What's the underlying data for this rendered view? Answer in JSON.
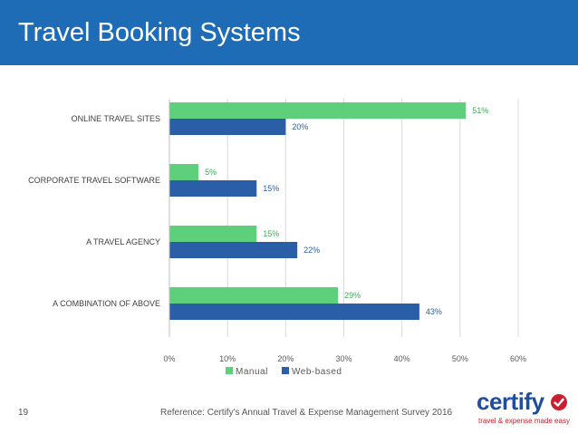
{
  "slide": {
    "title": "Travel Booking Systems",
    "page_number": "19",
    "reference": "Reference: Certify's Annual Travel & Expense Management Survey 2016"
  },
  "logo": {
    "word": "certify",
    "tagline": "travel & expense made easy",
    "check_icon": "checkmark-circle-icon",
    "colors": {
      "word": "#1f4e9a",
      "accent": "#c8202f"
    }
  },
  "colors": {
    "title_bar": "#1e6cb5"
  },
  "chart_data": {
    "type": "bar",
    "orientation": "horizontal",
    "categories": [
      "ONLINE TRAVEL SITES",
      "CORPORATE TRAVEL SOFTWARE",
      "A TRAVEL AGENCY",
      "A COMBINATION OF ABOVE"
    ],
    "series": [
      {
        "name": "Manual",
        "values": [
          51,
          5,
          15,
          29
        ],
        "color": "#5ecf7a",
        "label_color": "#3aaa55"
      },
      {
        "name": "Web-based",
        "values": [
          20,
          15,
          22,
          43
        ],
        "color": "#2a5ea6",
        "label_color": "#2a5ea6"
      }
    ],
    "xticks": [
      "0%",
      "10%",
      "20%",
      "30%",
      "40%",
      "50%",
      "60%"
    ],
    "xlim": [
      0,
      60
    ],
    "value_suffix": "%",
    "grid": true,
    "legend_position": "bottom"
  }
}
